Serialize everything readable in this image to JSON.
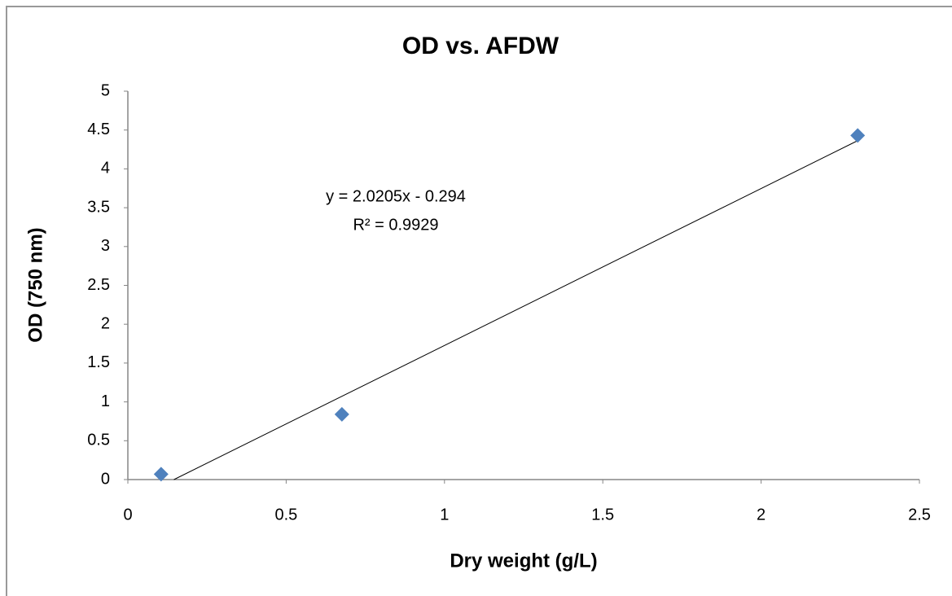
{
  "chart_data": {
    "type": "scatter",
    "title": "OD vs. AFDW",
    "x_label": "Dry weight (g/L)",
    "y_label": "OD (750 nm)",
    "series": [
      {
        "name": "OD",
        "color": "#4f81bd",
        "x": [
          0.105,
          0.676,
          2.305
        ],
        "values": [
          0.07,
          0.84,
          4.43
        ]
      }
    ],
    "trendline": {
      "slope": 2.0205,
      "intercept": -0.294,
      "color": "#000000",
      "equation": "y = 2.0205x - 0.294",
      "r2_label": "R² = 0.9929"
    },
    "xlim": [
      0,
      2.5
    ],
    "xticks": [
      0,
      0.5,
      1,
      1.5,
      2,
      2.5
    ],
    "ylim": [
      0,
      5
    ],
    "yticks": [
      0,
      0.5,
      1,
      1.5,
      2,
      2.5,
      3,
      3.5,
      4,
      4.5,
      5
    ],
    "grid": false
  }
}
